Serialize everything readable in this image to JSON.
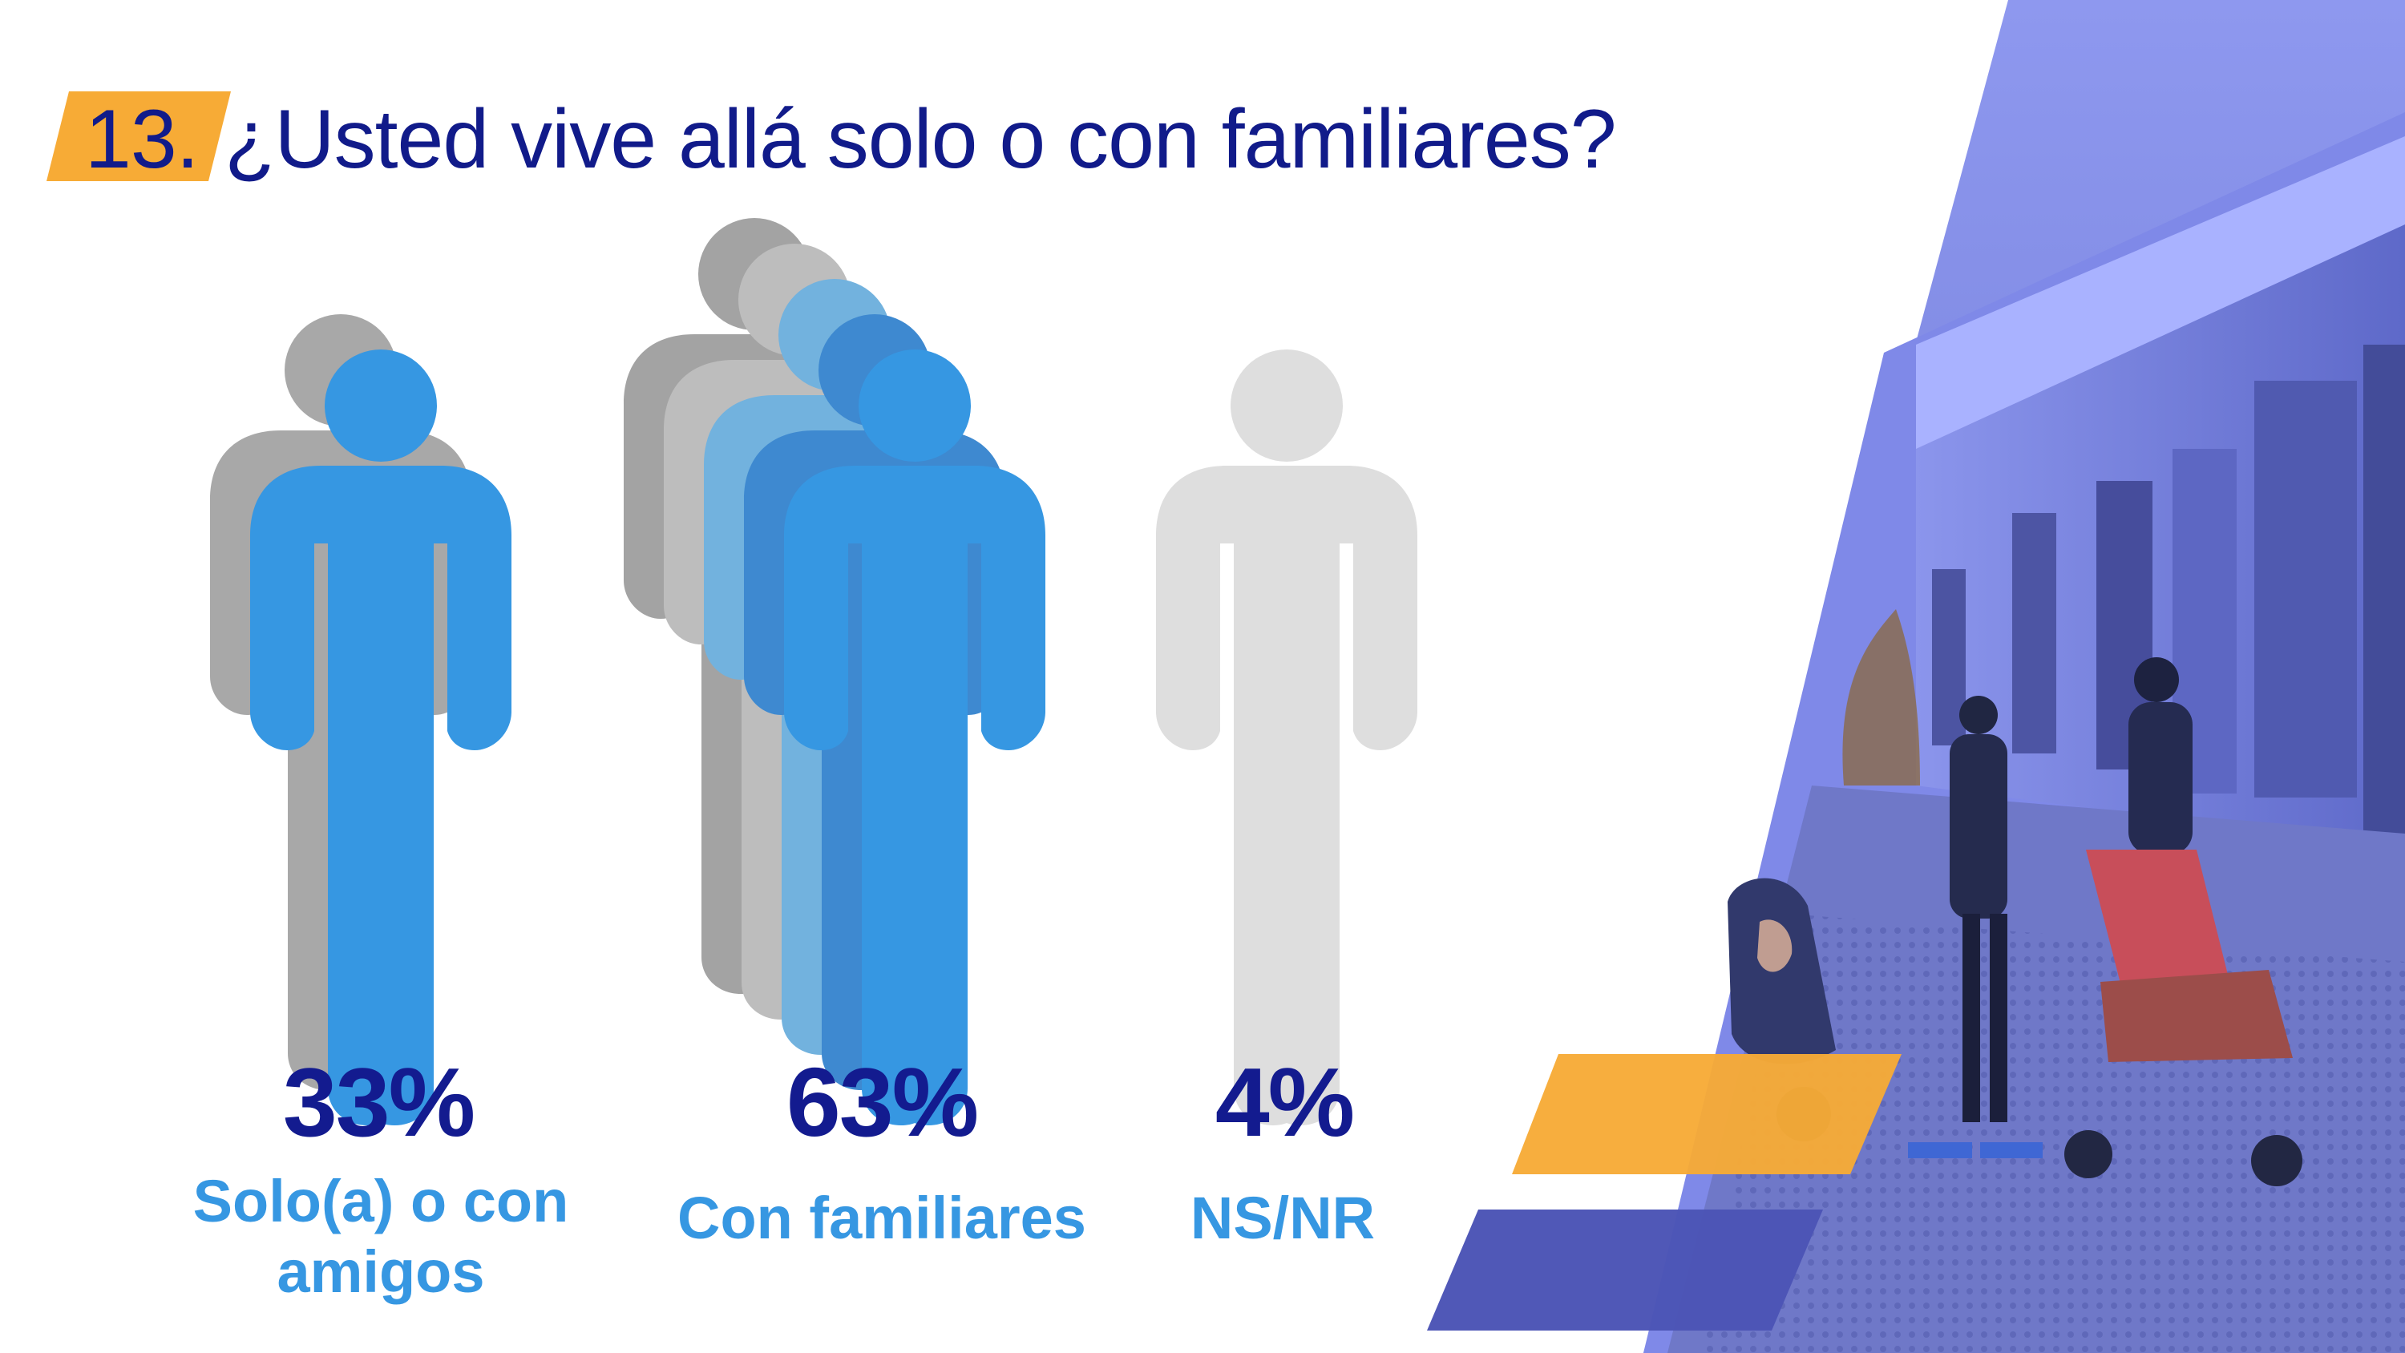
{
  "header": {
    "number": "13.",
    "title": "¿Usted vive allá solo o con familiares?"
  },
  "colors": {
    "title_text": "#111b8a",
    "number_tag": "#f7ab36",
    "percent_text": "#131b8f",
    "category_text": "#3697e2",
    "figure_blue": "#3697e2",
    "figure_gray": "#a8a8a8",
    "figure_light_gray": "#dedede",
    "photo_overlay": "#3f4bb0",
    "accent_orange": "#f7ab36",
    "accent_blue": "#4d55b6"
  },
  "chart_data": {
    "type": "pictograph",
    "categories": [
      "Solo(a) o con amigos",
      "Con familiares",
      "NS/NR"
    ],
    "values": [
      33,
      63,
      4
    ],
    "value_labels": [
      "33%",
      "63%",
      "4%"
    ],
    "icons": [
      "people-pair-icon",
      "family-group-icon",
      "single-person-icon"
    ]
  },
  "photo": {
    "icon": "street-photo-icon"
  }
}
